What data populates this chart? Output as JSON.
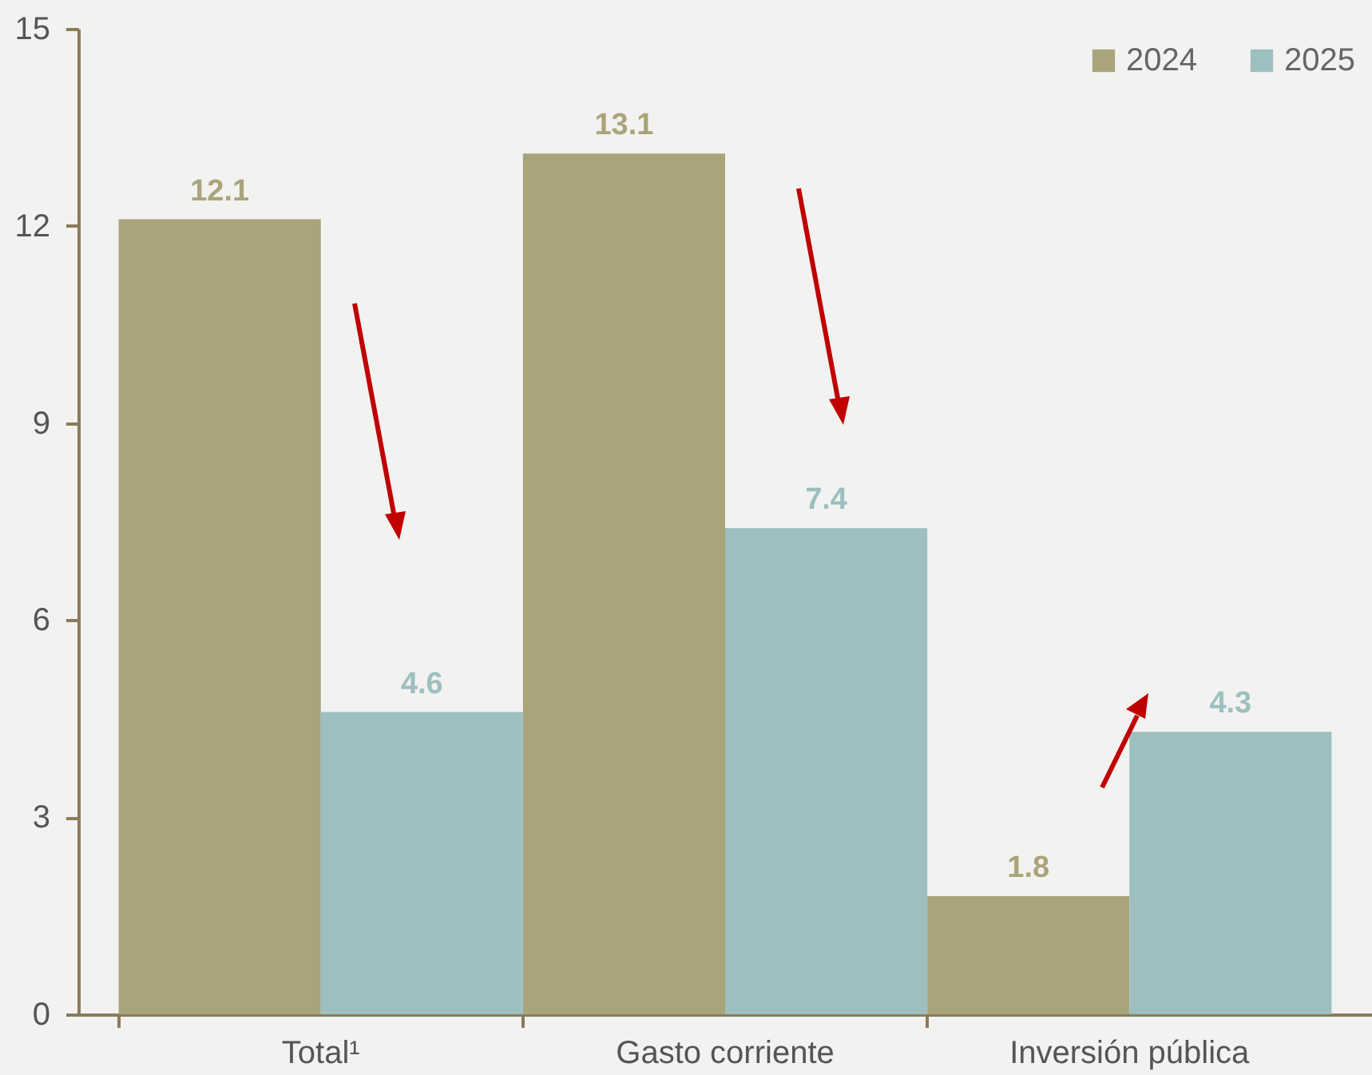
{
  "chart_data": {
    "type": "bar",
    "categories": [
      "Total¹",
      "Gasto corriente",
      "Inversión pública"
    ],
    "series": [
      {
        "name": "2024",
        "color": "#a9a47a",
        "values": [
          12.1,
          13.1,
          1.8
        ]
      },
      {
        "name": "2025",
        "color": "#9dbfbf",
        "values": [
          4.6,
          7.4,
          4.3
        ]
      }
    ],
    "ylim": [
      0,
      15
    ],
    "yticks": [
      0,
      3,
      6,
      9,
      12,
      15
    ],
    "grid": false,
    "legend": "top right",
    "data_labels": true
  }
}
